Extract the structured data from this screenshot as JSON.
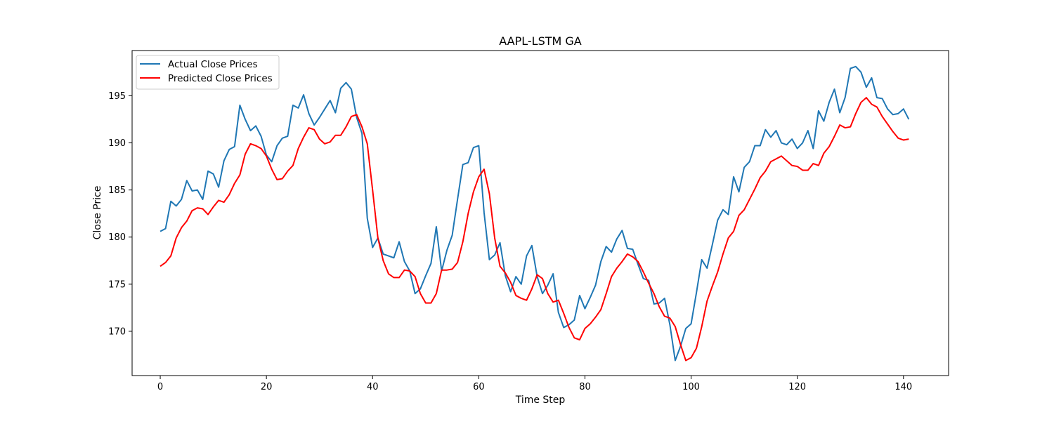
{
  "chart_data": {
    "type": "line",
    "title": "AAPL-LSTM GA",
    "xlabel": "Time Step",
    "ylabel": "Close Price",
    "xlim": [
      -5.3,
      148.5
    ],
    "ylim": [
      165.3,
      199.8
    ],
    "xticks": [
      0,
      20,
      40,
      60,
      80,
      100,
      120,
      140
    ],
    "yticks": [
      170,
      175,
      180,
      185,
      190,
      195
    ],
    "legend_position": "top-left",
    "grid": false,
    "series": [
      {
        "name": "Actual Close Prices",
        "color": "#1f77b4",
        "values": [
          180.6,
          180.9,
          183.8,
          183.3,
          184.0,
          186.0,
          184.9,
          185.0,
          184.0,
          187.0,
          186.7,
          185.3,
          188.1,
          189.3,
          189.6,
          194.0,
          192.5,
          191.3,
          191.8,
          190.7,
          188.7,
          188.0,
          189.7,
          190.5,
          190.7,
          194.0,
          193.7,
          195.1,
          193.1,
          191.9,
          192.7,
          193.6,
          194.5,
          193.2,
          195.8,
          196.4,
          195.7,
          192.7,
          191.0,
          182.0,
          178.9,
          179.9,
          178.2,
          178.0,
          177.8,
          179.5,
          177.4,
          176.4,
          174.0,
          174.5,
          175.9,
          177.2,
          181.1,
          176.4,
          178.6,
          180.2,
          184.0,
          187.7,
          187.9,
          189.5,
          189.7,
          182.6,
          177.6,
          178.1,
          179.4,
          175.9,
          174.2,
          175.8,
          175.0,
          178.0,
          179.1,
          175.8,
          174.0,
          174.9,
          176.1,
          172.0,
          170.4,
          170.7,
          171.2,
          173.8,
          172.4,
          173.6,
          174.9,
          177.4,
          179.0,
          178.4,
          179.8,
          180.7,
          178.8,
          178.7,
          177.1,
          175.6,
          175.4,
          172.9,
          173.0,
          173.5,
          170.7,
          166.9,
          168.4,
          170.3,
          170.8,
          174.1,
          177.6,
          176.7,
          179.2,
          181.8,
          182.9,
          182.4,
          186.4,
          184.8,
          187.4,
          188.0,
          189.7,
          189.7,
          191.4,
          190.6,
          191.3,
          190.0,
          189.8,
          190.4,
          189.4,
          190.0,
          191.3,
          189.4,
          193.4,
          192.3,
          194.3,
          195.7,
          193.2,
          194.8,
          197.9,
          198.1,
          197.5,
          195.9,
          196.9,
          194.8,
          194.7,
          193.6,
          193.0,
          193.1,
          193.6,
          192.5
        ]
      },
      {
        "name": "Predicted Close Prices",
        "color": "#ff0000",
        "values": [
          176.9,
          177.3,
          178.0,
          179.9,
          181.0,
          181.7,
          182.8,
          183.1,
          183.0,
          182.4,
          183.2,
          183.9,
          183.7,
          184.5,
          185.7,
          186.6,
          188.8,
          189.9,
          189.7,
          189.4,
          188.6,
          187.2,
          186.1,
          186.2,
          187.0,
          187.6,
          189.4,
          190.6,
          191.6,
          191.4,
          190.4,
          189.9,
          190.1,
          190.8,
          190.8,
          191.7,
          192.8,
          193.0,
          191.7,
          189.9,
          185.0,
          179.9,
          177.5,
          176.1,
          175.7,
          175.7,
          176.5,
          176.4,
          175.8,
          174.0,
          173.0,
          173.0,
          174.0,
          176.5,
          176.5,
          176.6,
          177.3,
          179.5,
          182.5,
          184.8,
          186.4,
          187.2,
          184.6,
          179.9,
          176.9,
          176.2,
          175.2,
          173.8,
          173.5,
          173.3,
          174.5,
          176.0,
          175.6,
          174.0,
          173.1,
          173.3,
          171.9,
          170.4,
          169.3,
          169.1,
          170.3,
          170.8,
          171.5,
          172.3,
          174.0,
          175.8,
          176.7,
          177.4,
          178.2,
          177.9,
          177.4,
          176.3,
          175.1,
          174.0,
          172.6,
          171.6,
          171.4,
          170.5,
          168.6,
          166.9,
          167.2,
          168.2,
          170.5,
          173.2,
          174.8,
          176.3,
          178.2,
          179.9,
          180.6,
          182.3,
          182.9,
          184.0,
          185.1,
          186.3,
          187.0,
          188.0,
          188.3,
          188.6,
          188.1,
          187.6,
          187.5,
          187.1,
          187.1,
          187.8,
          187.6,
          188.9,
          189.6,
          190.7,
          191.9,
          191.6,
          191.7,
          193.1,
          194.3,
          194.8,
          194.1,
          193.8,
          192.8,
          192.0,
          191.2,
          190.5,
          190.3,
          190.4
        ]
      }
    ]
  }
}
